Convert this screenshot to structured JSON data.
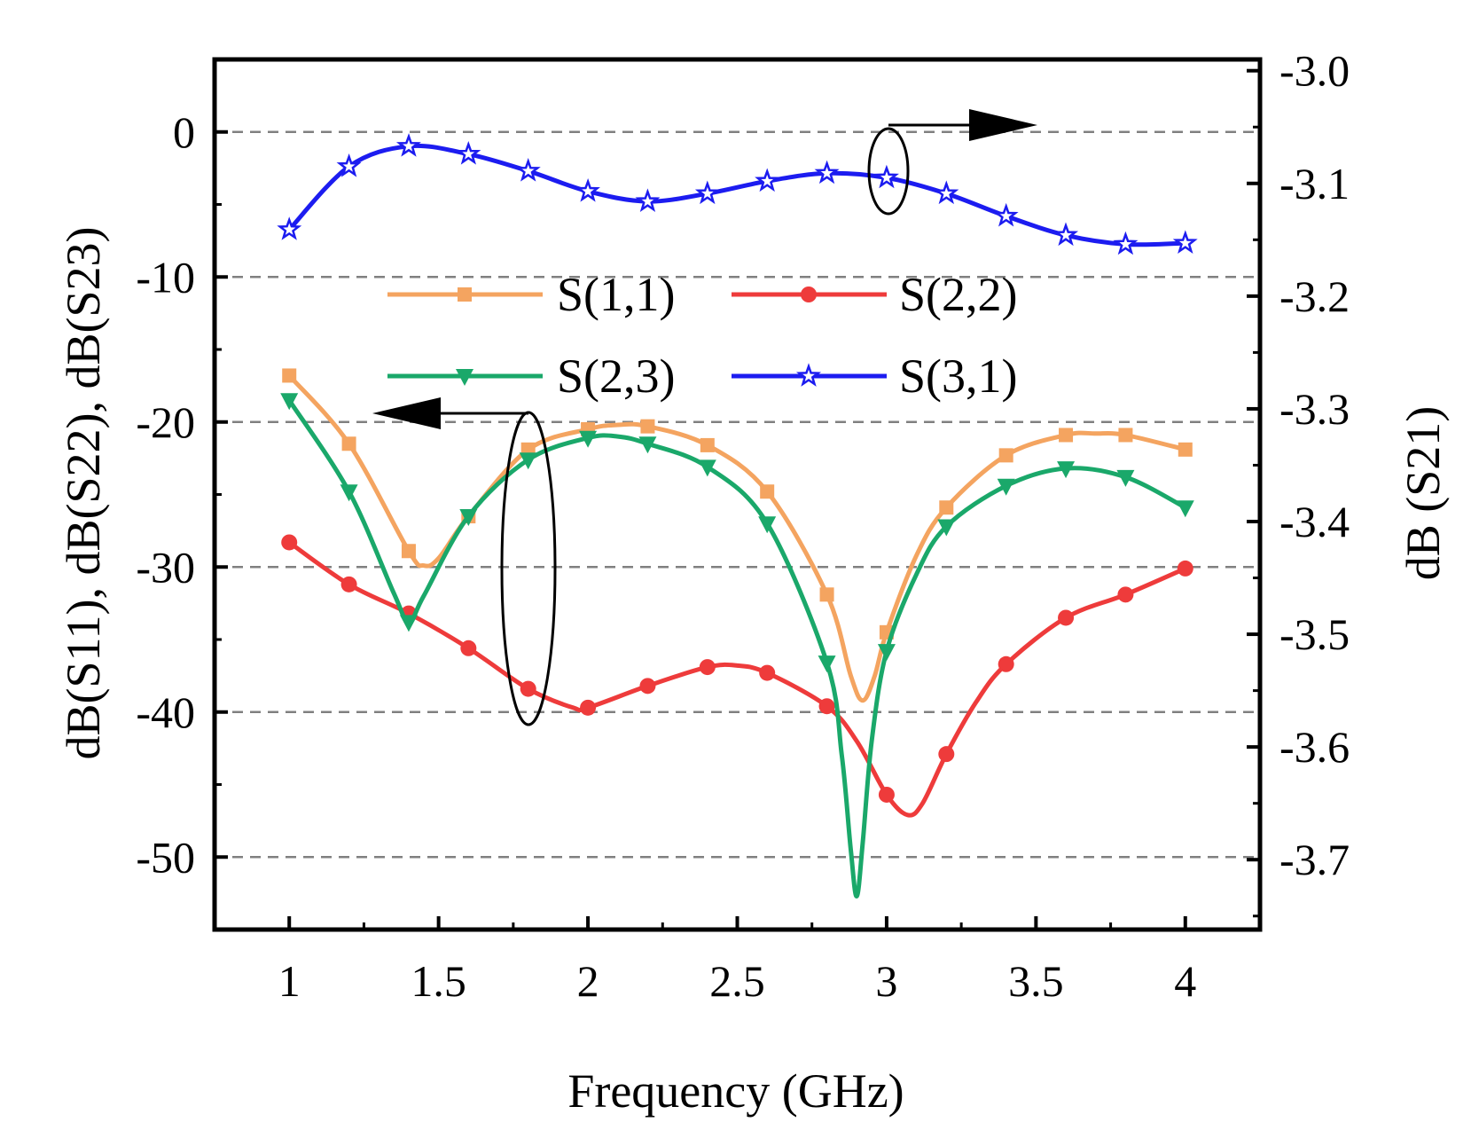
{
  "chart_data": {
    "type": "line",
    "title": "",
    "xlabel": "Frequency (GHz)",
    "ylabel_left": "dB(S11), dB(S22), dB(S23)",
    "ylabel_right": "dB (S21)",
    "xlim": [
      0.75,
      4.25
    ],
    "ylim_left": [
      -55,
      5
    ],
    "ylim_right": [
      -3.762,
      -2.99
    ],
    "x_ticks": [
      1,
      1.5,
      2,
      2.5,
      3,
      3.5,
      4
    ],
    "x_tick_labels": [
      "1",
      "1.5",
      "2",
      "2.5",
      "3",
      "3.5",
      "4"
    ],
    "y_left_ticks": [
      0,
      -10,
      -20,
      -30,
      -40,
      -50
    ],
    "y_left_tick_labels": [
      "0",
      "-10",
      "-20",
      "-30",
      "-40",
      "-50"
    ],
    "y_right_ticks": [
      -3.0,
      -3.1,
      -3.2,
      -3.3,
      -3.4,
      -3.5,
      -3.6,
      -3.7
    ],
    "y_right_tick_labels": [
      "-3.0",
      "-3.1",
      "-3.2",
      "-3.3",
      "-3.4",
      "-3.5",
      "-3.6",
      "-3.7"
    ],
    "grid": "horizontal dashed at left-axis major ticks",
    "legend_position": "center-top, inside plot",
    "series": [
      {
        "name": "S(1,1)",
        "axis": "left",
        "color": "#f4a460",
        "marker": "square",
        "markers": [
          [
            1.0,
            -16.8
          ],
          [
            1.2,
            -21.5
          ],
          [
            1.4,
            -28.9
          ],
          [
            1.6,
            -26.5
          ],
          [
            1.8,
            -21.9
          ],
          [
            2.0,
            -20.5
          ],
          [
            2.2,
            -20.3
          ],
          [
            2.4,
            -21.6
          ],
          [
            2.6,
            -24.8
          ],
          [
            2.8,
            -31.9
          ],
          [
            3.0,
            -34.5
          ],
          [
            3.2,
            -25.9
          ],
          [
            3.4,
            -22.3
          ],
          [
            3.6,
            -20.9
          ],
          [
            3.8,
            -20.9
          ],
          [
            4.0,
            -21.9
          ]
        ],
        "curve": [
          [
            1.0,
            -16.8
          ],
          [
            1.2,
            -21.5
          ],
          [
            1.4,
            -28.9
          ],
          [
            1.45,
            -29.9
          ],
          [
            1.5,
            -29.4
          ],
          [
            1.6,
            -26.5
          ],
          [
            1.8,
            -21.9
          ],
          [
            2.0,
            -20.5
          ],
          [
            2.1,
            -20.2
          ],
          [
            2.2,
            -20.3
          ],
          [
            2.4,
            -21.6
          ],
          [
            2.6,
            -24.8
          ],
          [
            2.8,
            -31.9
          ],
          [
            2.88,
            -37.5
          ],
          [
            2.92,
            -39.2
          ],
          [
            2.96,
            -37.5
          ],
          [
            3.0,
            -34.5
          ],
          [
            3.1,
            -29.2
          ],
          [
            3.2,
            -25.9
          ],
          [
            3.4,
            -22.3
          ],
          [
            3.6,
            -20.9
          ],
          [
            3.7,
            -20.8
          ],
          [
            3.8,
            -20.9
          ],
          [
            4.0,
            -21.9
          ]
        ]
      },
      {
        "name": "S(2,2)",
        "axis": "left",
        "color": "#ee3b3b",
        "marker": "circle",
        "markers": [
          [
            1.0,
            -28.3
          ],
          [
            1.2,
            -31.2
          ],
          [
            1.4,
            -33.2
          ],
          [
            1.6,
            -35.6
          ],
          [
            1.8,
            -38.4
          ],
          [
            2.0,
            -39.7
          ],
          [
            2.2,
            -38.2
          ],
          [
            2.4,
            -36.9
          ],
          [
            2.6,
            -37.3
          ],
          [
            2.8,
            -39.6
          ],
          [
            3.0,
            -45.7
          ],
          [
            3.2,
            -42.9
          ],
          [
            3.4,
            -36.7
          ],
          [
            3.6,
            -33.5
          ],
          [
            3.8,
            -31.9
          ],
          [
            4.0,
            -30.1
          ]
        ],
        "curve": [
          [
            1.0,
            -28.3
          ],
          [
            1.2,
            -31.2
          ],
          [
            1.4,
            -33.2
          ],
          [
            1.6,
            -35.6
          ],
          [
            1.8,
            -38.4
          ],
          [
            1.95,
            -39.7
          ],
          [
            2.0,
            -39.7
          ],
          [
            2.2,
            -38.2
          ],
          [
            2.4,
            -36.9
          ],
          [
            2.5,
            -36.8
          ],
          [
            2.6,
            -37.3
          ],
          [
            2.8,
            -39.6
          ],
          [
            2.9,
            -42.0
          ],
          [
            3.0,
            -45.7
          ],
          [
            3.07,
            -47.1
          ],
          [
            3.12,
            -46.3
          ],
          [
            3.2,
            -42.9
          ],
          [
            3.3,
            -39.3
          ],
          [
            3.4,
            -36.7
          ],
          [
            3.6,
            -33.5
          ],
          [
            3.8,
            -31.9
          ],
          [
            4.0,
            -30.1
          ]
        ]
      },
      {
        "name": "S(2,3)",
        "axis": "left",
        "color": "#1aa86a",
        "marker": "triangle-down",
        "markers": [
          [
            1.0,
            -18.5
          ],
          [
            1.2,
            -24.8
          ],
          [
            1.4,
            -33.8
          ],
          [
            1.6,
            -26.5
          ],
          [
            1.8,
            -22.6
          ],
          [
            2.0,
            -21.1
          ],
          [
            2.2,
            -21.5
          ],
          [
            2.4,
            -23.1
          ],
          [
            2.6,
            -27.0
          ],
          [
            2.8,
            -36.6
          ],
          [
            3.0,
            -35.8
          ],
          [
            3.2,
            -27.2
          ],
          [
            3.4,
            -24.4
          ],
          [
            3.6,
            -23.2
          ],
          [
            3.8,
            -23.8
          ],
          [
            4.0,
            -25.9
          ]
        ],
        "curve": [
          [
            1.0,
            -18.5
          ],
          [
            1.2,
            -24.8
          ],
          [
            1.35,
            -31.8
          ],
          [
            1.4,
            -33.8
          ],
          [
            1.45,
            -32.0
          ],
          [
            1.6,
            -26.5
          ],
          [
            1.8,
            -22.6
          ],
          [
            2.0,
            -21.1
          ],
          [
            2.1,
            -21.0
          ],
          [
            2.2,
            -21.5
          ],
          [
            2.4,
            -23.1
          ],
          [
            2.6,
            -27.0
          ],
          [
            2.8,
            -36.6
          ],
          [
            2.85,
            -43.0
          ],
          [
            2.88,
            -49.5
          ],
          [
            2.9,
            -52.7
          ],
          [
            2.92,
            -49.0
          ],
          [
            2.95,
            -42.0
          ],
          [
            3.0,
            -35.8
          ],
          [
            3.1,
            -30.5
          ],
          [
            3.2,
            -27.2
          ],
          [
            3.4,
            -24.4
          ],
          [
            3.6,
            -23.2
          ],
          [
            3.8,
            -23.8
          ],
          [
            4.0,
            -25.9
          ]
        ]
      },
      {
        "name": "S(3,1)",
        "axis": "right",
        "color": "#1c1cf0",
        "marker": "star",
        "markers": [
          [
            1.0,
            -3.141
          ],
          [
            1.2,
            -3.085
          ],
          [
            1.4,
            -3.067
          ],
          [
            1.6,
            -3.074
          ],
          [
            1.8,
            -3.089
          ],
          [
            2.0,
            -3.107
          ],
          [
            2.2,
            -3.116
          ],
          [
            2.4,
            -3.109
          ],
          [
            2.6,
            -3.098
          ],
          [
            2.8,
            -3.091
          ],
          [
            3.0,
            -3.095
          ],
          [
            3.2,
            -3.109
          ],
          [
            3.4,
            -3.129
          ],
          [
            3.6,
            -3.146
          ],
          [
            3.8,
            -3.154
          ],
          [
            4.0,
            -3.153
          ]
        ],
        "curve": [
          [
            1.0,
            -3.141
          ],
          [
            1.2,
            -3.085
          ],
          [
            1.4,
            -3.067
          ],
          [
            1.6,
            -3.074
          ],
          [
            1.8,
            -3.089
          ],
          [
            2.0,
            -3.107
          ],
          [
            2.2,
            -3.116
          ],
          [
            2.4,
            -3.109
          ],
          [
            2.6,
            -3.098
          ],
          [
            2.8,
            -3.091
          ],
          [
            3.0,
            -3.095
          ],
          [
            3.2,
            -3.109
          ],
          [
            3.4,
            -3.129
          ],
          [
            3.6,
            -3.146
          ],
          [
            3.8,
            -3.154
          ],
          [
            4.0,
            -3.153
          ]
        ]
      }
    ],
    "annotations": [
      {
        "kind": "ellipse-arrow",
        "points_to": "left axis",
        "covers": "S(1,1), S(2,2), S(2,3) near 1.8 GHz"
      },
      {
        "kind": "ellipse-arrow",
        "points_to": "right axis",
        "covers": "S(3,1) near 3.0 GHz"
      }
    ]
  }
}
